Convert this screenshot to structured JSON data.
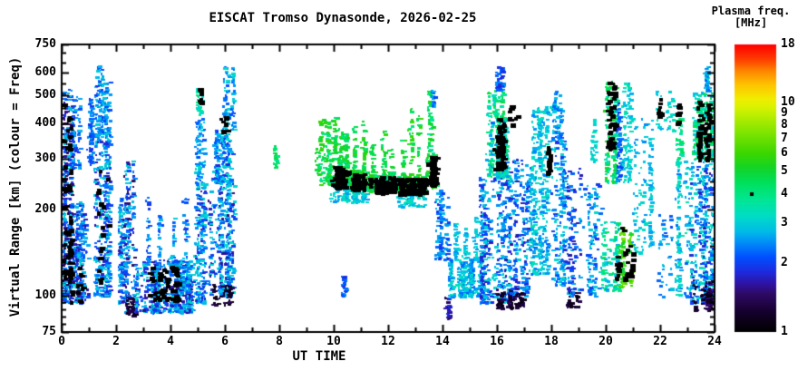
{
  "title": "EISCAT Tromso Dynasonde, 2026-02-25",
  "axes": {
    "x": {
      "label": "UT TIME",
      "min": 0,
      "max": 24,
      "major_ticks": [
        0,
        2,
        4,
        6,
        8,
        10,
        12,
        14,
        16,
        18,
        20,
        22,
        24
      ],
      "minor_ticks": [
        1,
        3,
        5,
        7,
        9,
        11,
        13,
        15,
        17,
        19,
        21,
        23
      ]
    },
    "y": {
      "label": "Virtual Range [km] (colour = Freq)",
      "scale": "log",
      "min": 75,
      "max": 750,
      "major_ticks": [
        75,
        100,
        200,
        300,
        400,
        500,
        600,
        750
      ],
      "minor_ticks": [
        80,
        85,
        90,
        95,
        150,
        250,
        350,
        450,
        550,
        650,
        700
      ]
    }
  },
  "colorbar": {
    "title": "Plasma freq.",
    "units": "[MHz]",
    "scale": "log",
    "min": 1,
    "max": 18,
    "tick_labels": [
      18,
      10,
      9,
      8,
      7,
      6,
      5,
      4,
      3,
      2,
      1
    ],
    "marker_value": 4,
    "marker_color": "#000000",
    "colormap_stops": [
      [
        0.0,
        "#000000"
      ],
      [
        0.07,
        "#16002e"
      ],
      [
        0.13,
        "#2e0a64"
      ],
      [
        0.17,
        "#2e14a8"
      ],
      [
        0.21,
        "#1c2ce0"
      ],
      [
        0.26,
        "#0050ff"
      ],
      [
        0.31,
        "#008cf8"
      ],
      [
        0.35,
        "#00bce8"
      ],
      [
        0.4,
        "#00dcc8"
      ],
      [
        0.46,
        "#00e694"
      ],
      [
        0.52,
        "#00e05c"
      ],
      [
        0.57,
        "#12d428"
      ],
      [
        0.62,
        "#3ad600"
      ],
      [
        0.68,
        "#72e200"
      ],
      [
        0.73,
        "#a2ea00"
      ],
      [
        0.78,
        "#d6f200"
      ],
      [
        0.81,
        "#f0ee00"
      ],
      [
        0.86,
        "#ffc400"
      ],
      [
        0.91,
        "#ff8400"
      ],
      [
        0.95,
        "#ff3c00"
      ],
      [
        1.0,
        "#ff0000"
      ]
    ]
  },
  "chart_data": {
    "type": "scatter",
    "title": "EISCAT Tromso Dynasonde, 2026-02-25",
    "xlabel": "UT TIME",
    "ylabel": "Virtual Range [km] (colour = Freq)",
    "x_range": [
      0,
      24
    ],
    "y_range": [
      75,
      750
    ],
    "y_scale": "log",
    "color_range_mhz": [
      1,
      18
    ],
    "color_scale": "log",
    "grid": false,
    "legend_position": "right-colorbar",
    "clusters": {
      "fields": [
        "ut_start",
        "ut_end",
        "range_km_min",
        "range_km_max",
        "freq_mhz_min",
        "freq_mhz_max",
        "n_points"
      ],
      "rows": [
        [
          0.0,
          0.38,
          95,
          530,
          1.2,
          3.2,
          420
        ],
        [
          0.38,
          0.62,
          280,
          500,
          1.8,
          2.8,
          80
        ],
        [
          0.4,
          0.95,
          95,
          215,
          1.5,
          3.0,
          240
        ],
        [
          0.9,
          1.15,
          290,
          490,
          1.8,
          2.6,
          90
        ],
        [
          1.2,
          1.48,
          360,
          640,
          1.8,
          3.0,
          110
        ],
        [
          1.2,
          1.75,
          100,
          360,
          1.6,
          3.2,
          360
        ],
        [
          1.5,
          1.78,
          360,
          560,
          2.0,
          3.0,
          60
        ],
        [
          2.05,
          2.4,
          95,
          220,
          1.6,
          3.2,
          150
        ],
        [
          2.3,
          2.65,
          88,
          300,
          1.4,
          3.0,
          170
        ],
        [
          2.35,
          2.7,
          86,
          100,
          1.05,
          1.4,
          40
        ],
        [
          2.65,
          4.75,
          88,
          135,
          1.5,
          3.2,
          650
        ],
        [
          3.05,
          3.2,
          130,
          230,
          1.8,
          2.8,
          30
        ],
        [
          3.45,
          3.6,
          130,
          200,
          1.8,
          2.8,
          25
        ],
        [
          3.95,
          4.1,
          130,
          190,
          2.0,
          3.0,
          20
        ],
        [
          4.4,
          4.55,
          130,
          235,
          1.8,
          2.8,
          30
        ],
        [
          4.8,
          5.3,
          95,
          260,
          1.6,
          3.2,
          210
        ],
        [
          4.85,
          5.25,
          260,
          430,
          2.0,
          3.2,
          70
        ],
        [
          4.95,
          5.2,
          430,
          530,
          3.0,
          4.2,
          30
        ],
        [
          5.35,
          6.3,
          100,
          250,
          1.5,
          3.2,
          360
        ],
        [
          5.5,
          6.3,
          250,
          380,
          1.8,
          3.2,
          190
        ],
        [
          5.95,
          6.3,
          380,
          630,
          2.0,
          3.2,
          90
        ],
        [
          5.5,
          6.2,
          94,
          110,
          1.05,
          1.4,
          50
        ],
        [
          7.75,
          7.95,
          280,
          340,
          3.5,
          5.0,
          25
        ],
        [
          9.25,
          9.4,
          265,
          330,
          4.0,
          5.5,
          20
        ],
        [
          9.45,
          9.8,
          245,
          420,
          3.8,
          6.0,
          90
        ],
        [
          9.8,
          10.55,
          245,
          300,
          3.5,
          6.0,
          150
        ],
        [
          9.8,
          10.55,
          215,
          245,
          2.5,
          3.5,
          90
        ],
        [
          9.9,
          10.05,
          300,
          430,
          4.0,
          6.0,
          35
        ],
        [
          10.15,
          10.3,
          300,
          400,
          4.0,
          6.0,
          25
        ],
        [
          10.4,
          10.52,
          300,
          370,
          4.0,
          5.5,
          18
        ],
        [
          10.25,
          10.42,
          100,
          118,
          1.8,
          2.5,
          30
        ],
        [
          10.55,
          11.25,
          238,
          275,
          3.5,
          6.0,
          150
        ],
        [
          10.65,
          10.78,
          275,
          390,
          4.0,
          6.0,
          25
        ],
        [
          10.95,
          11.08,
          275,
          425,
          4.0,
          6.0,
          30
        ],
        [
          10.6,
          11.2,
          213,
          238,
          2.5,
          3.5,
          50
        ],
        [
          11.25,
          12.25,
          233,
          265,
          3.5,
          6.0,
          190
        ],
        [
          11.35,
          11.5,
          265,
          350,
          4.0,
          5.5,
          20
        ],
        [
          11.7,
          11.85,
          265,
          385,
          4.0,
          6.0,
          25
        ],
        [
          12.0,
          12.15,
          265,
          330,
          4.0,
          5.5,
          15
        ],
        [
          12.25,
          13.35,
          228,
          262,
          3.5,
          6.0,
          210
        ],
        [
          12.4,
          12.55,
          262,
          360,
          4.0,
          6.0,
          22
        ],
        [
          12.7,
          12.85,
          262,
          450,
          4.0,
          6.5,
          30
        ],
        [
          13.0,
          13.15,
          262,
          430,
          4.0,
          6.0,
          26
        ],
        [
          12.3,
          13.3,
          205,
          228,
          2.5,
          3.5,
          60
        ],
        [
          13.35,
          13.75,
          240,
          320,
          3.5,
          6.0,
          90
        ],
        [
          13.45,
          13.62,
          320,
          520,
          3.5,
          5.5,
          50
        ],
        [
          13.5,
          13.65,
          460,
          530,
          2.0,
          2.8,
          25
        ],
        [
          13.65,
          14.15,
          135,
          235,
          1.8,
          2.8,
          120
        ],
        [
          13.95,
          14.35,
          84,
          100,
          1.2,
          2.0,
          30
        ],
        [
          14.2,
          15.35,
          100,
          135,
          2.2,
          3.4,
          260
        ],
        [
          14.4,
          14.55,
          135,
          180,
          2.5,
          3.2,
          30
        ],
        [
          14.75,
          14.9,
          135,
          175,
          2.5,
          3.2,
          25
        ],
        [
          15.05,
          15.2,
          135,
          190,
          2.5,
          3.2,
          30
        ],
        [
          15.35,
          16.45,
          95,
          260,
          1.6,
          3.2,
          430
        ],
        [
          15.9,
          16.5,
          91,
          106,
          1.05,
          1.5,
          70
        ],
        [
          15.55,
          16.35,
          260,
          420,
          2.2,
          4.5,
          270
        ],
        [
          15.6,
          16.2,
          420,
          520,
          3.0,
          5.0,
          60
        ],
        [
          15.95,
          16.15,
          520,
          630,
          1.8,
          2.6,
          50
        ],
        [
          16.45,
          17.1,
          100,
          300,
          1.6,
          3.0,
          210
        ],
        [
          16.5,
          17.05,
          92,
          104,
          1.05,
          1.4,
          40
        ],
        [
          17.1,
          17.85,
          120,
          300,
          2.2,
          3.4,
          250
        ],
        [
          17.3,
          17.95,
          300,
          460,
          2.4,
          3.4,
          120
        ],
        [
          17.95,
          18.45,
          110,
          350,
          1.8,
          3.2,
          190
        ],
        [
          18.0,
          18.35,
          350,
          450,
          2.0,
          3.0,
          50
        ],
        [
          18.05,
          18.3,
          450,
          520,
          2.2,
          3.0,
          18
        ],
        [
          18.45,
          19.1,
          100,
          280,
          1.6,
          2.8,
          120
        ],
        [
          18.5,
          19.0,
          92,
          104,
          1.1,
          1.4,
          25
        ],
        [
          19.1,
          19.8,
          100,
          260,
          1.8,
          3.2,
          110
        ],
        [
          19.35,
          19.6,
          290,
          420,
          2.8,
          3.6,
          30
        ],
        [
          19.8,
          20.45,
          105,
          185,
          2.5,
          4.5,
          140
        ],
        [
          20.45,
          20.98,
          108,
          175,
          4.5,
          7.5,
          90
        ],
        [
          19.9,
          20.35,
          250,
          560,
          3.2,
          5.5,
          150
        ],
        [
          20.3,
          20.5,
          250,
          480,
          1.8,
          2.6,
          70
        ],
        [
          20.55,
          20.85,
          250,
          560,
          2.6,
          3.6,
          90
        ],
        [
          20.95,
          21.75,
          140,
          420,
          2.4,
          3.4,
          80
        ],
        [
          21.5,
          21.65,
          150,
          360,
          2.4,
          3.2,
          60
        ],
        [
          21.8,
          22.45,
          380,
          520,
          2.6,
          3.6,
          40
        ],
        [
          21.9,
          22.45,
          100,
          200,
          2.0,
          3.0,
          40
        ],
        [
          22.45,
          23.1,
          100,
          300,
          2.2,
          3.6,
          140
        ],
        [
          22.55,
          22.8,
          300,
          420,
          3.4,
          4.6,
          40
        ],
        [
          23.1,
          23.98,
          95,
          300,
          1.6,
          3.4,
          370
        ],
        [
          23.15,
          23.9,
          90,
          115,
          1.05,
          1.5,
          80
        ],
        [
          23.2,
          23.95,
          300,
          520,
          2.6,
          5.0,
          250
        ],
        [
          23.5,
          23.8,
          520,
          630,
          2.2,
          3.2,
          50
        ]
      ]
    },
    "black_clusters": {
      "fields": [
        "ut_start",
        "ut_end",
        "range_km_min",
        "range_km_max",
        "n_points"
      ],
      "rows": [
        [
          0.02,
          0.35,
          110,
          480,
          50
        ],
        [
          0.02,
          0.3,
          95,
          140,
          15
        ],
        [
          0.45,
          0.8,
          95,
          130,
          12
        ],
        [
          1.25,
          1.7,
          110,
          300,
          18
        ],
        [
          3.1,
          4.25,
          98,
          128,
          55
        ],
        [
          5.0,
          5.25,
          470,
          530,
          8
        ],
        [
          5.8,
          6.1,
          370,
          440,
          6
        ],
        [
          9.85,
          10.5,
          240,
          285,
          85
        ],
        [
          10.6,
          11.2,
          238,
          268,
          50
        ],
        [
          11.3,
          12.2,
          232,
          262,
          100
        ],
        [
          12.3,
          13.3,
          228,
          260,
          120
        ],
        [
          13.4,
          13.7,
          245,
          310,
          55
        ],
        [
          15.7,
          16.25,
          280,
          420,
          65
        ],
        [
          16.4,
          16.7,
          390,
          465,
          10
        ],
        [
          17.75,
          17.9,
          270,
          345,
          18
        ],
        [
          20.0,
          20.35,
          330,
          560,
          50
        ],
        [
          20.35,
          20.95,
          115,
          190,
          30
        ],
        [
          21.8,
          21.95,
          420,
          500,
          14
        ],
        [
          22.6,
          22.75,
          400,
          480,
          10
        ],
        [
          23.35,
          23.8,
          300,
          480,
          65
        ]
      ]
    }
  }
}
